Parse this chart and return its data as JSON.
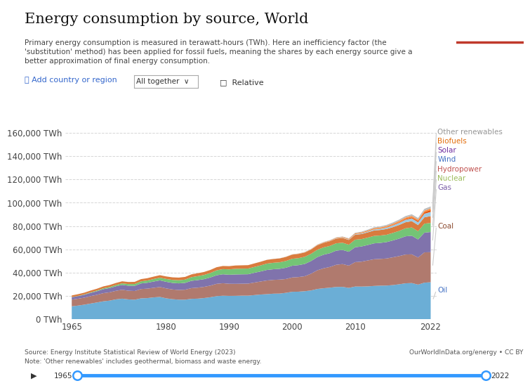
{
  "title": "Energy consumption by source, World",
  "subtitle_lines": [
    "Primary energy consumption is measured in terawatt-hours (TWh). Here an inefficiency factor (the",
    "'substitution' method) has been applied for fossil fuels, meaning the shares by each energy source give a",
    "better approximation of final energy consumption."
  ],
  "source_line1": "Source: Energy Institute Statistical Review of World Energy (2023)",
  "source_line2": "Note: 'Other renewables' includes geothermal, biomass and waste energy.",
  "source_right": "OurWorldInData.org/energy • CC BY",
  "years": [
    1965,
    1966,
    1967,
    1968,
    1969,
    1970,
    1971,
    1972,
    1973,
    1974,
    1975,
    1976,
    1977,
    1978,
    1979,
    1980,
    1981,
    1982,
    1983,
    1984,
    1985,
    1986,
    1987,
    1988,
    1989,
    1990,
    1991,
    1992,
    1993,
    1994,
    1995,
    1996,
    1997,
    1998,
    1999,
    2000,
    2001,
    2002,
    2003,
    2004,
    2005,
    2006,
    2007,
    2008,
    2009,
    2010,
    2011,
    2012,
    2013,
    2014,
    2015,
    2016,
    2017,
    2018,
    2019,
    2020,
    2021,
    2022
  ],
  "series": {
    "Oil": [
      11104,
      11722,
      12525,
      13475,
      14398,
      15376,
      15974,
      17040,
      17688,
      17042,
      16772,
      17946,
      18161,
      18761,
      19154,
      17967,
      17227,
      16830,
      16799,
      17536,
      17679,
      18189,
      18868,
      19838,
      20175,
      20048,
      20089,
      20236,
      20240,
      20740,
      21218,
      21526,
      21939,
      22033,
      22670,
      23574,
      23668,
      24072,
      24715,
      25988,
      26612,
      27096,
      27709,
      27778,
      26904,
      28071,
      28048,
      28208,
      28583,
      28839,
      28910,
      29338,
      30015,
      30845,
      31068,
      29725,
      31393,
      31756
    ],
    "Coal": [
      5752,
      5894,
      6017,
      6387,
      6557,
      6996,
      7132,
      7342,
      7621,
      7419,
      7453,
      7985,
      8097,
      8223,
      8547,
      8499,
      8332,
      8290,
      8571,
      9162,
      9444,
      9606,
      9985,
      10555,
      10757,
      10393,
      10313,
      10257,
      10329,
      10756,
      11189,
      11740,
      11842,
      12000,
      11861,
      12285,
      12542,
      12850,
      14378,
      16028,
      17124,
      17787,
      19038,
      19561,
      19119,
      20931,
      21371,
      22248,
      22912,
      22952,
      23244,
      23812,
      24209,
      24697,
      24638,
      23272,
      25988,
      25788
    ],
    "Gas": [
      2018,
      2233,
      2463,
      2768,
      3072,
      3416,
      3655,
      3902,
      4196,
      4326,
      4452,
      4795,
      5049,
      5371,
      5670,
      5669,
      5633,
      5681,
      5841,
      6289,
      6472,
      6621,
      6993,
      7344,
      7683,
      7752,
      8051,
      8064,
      8059,
      8390,
      8633,
      9062,
      9135,
      9256,
      9667,
      10056,
      10236,
      10516,
      10864,
      11330,
      11638,
      11821,
      12150,
      12128,
      11911,
      12790,
      13056,
      13266,
      13638,
      13741,
      14069,
      14484,
      15001,
      15627,
      15972,
      15520,
      16936,
      17346
    ],
    "Nuclear": [
      155,
      210,
      326,
      455,
      598,
      742,
      896,
      1080,
      1289,
      1393,
      1565,
      1785,
      1944,
      2139,
      2281,
      2453,
      2562,
      2663,
      2818,
      3101,
      3390,
      3576,
      3801,
      4213,
      4404,
      4613,
      4846,
      4850,
      4879,
      4988,
      5190,
      5447,
      5538,
      5570,
      5779,
      5969,
      6006,
      6166,
      6194,
      6290,
      6288,
      6266,
      6285,
      6207,
      6032,
      6481,
      6290,
      6335,
      6380,
      6341,
      6289,
      6477,
      6597,
      6878,
      7116,
      6986,
      7706,
      7792
    ],
    "Hydropower": [
      1397,
      1465,
      1489,
      1555,
      1575,
      1643,
      1693,
      1742,
      1779,
      1798,
      1860,
      1936,
      1984,
      2098,
      2168,
      2159,
      2213,
      2278,
      2308,
      2415,
      2511,
      2571,
      2660,
      2707,
      2701,
      2766,
      2839,
      2879,
      2914,
      3034,
      3132,
      3213,
      3265,
      3357,
      3464,
      3543,
      3626,
      3665,
      3644,
      3841,
      3887,
      4026,
      4027,
      4059,
      4100,
      4267,
      4340,
      4492,
      4667,
      4745,
      4928,
      4947,
      5106,
      5209,
      5378,
      5298,
      5471,
      5831
    ],
    "Wind": [
      0,
      0,
      0,
      0,
      0,
      0,
      0,
      0,
      0,
      0,
      0,
      0,
      0,
      0,
      0,
      0,
      0,
      0,
      0,
      0,
      0,
      0,
      0,
      0,
      0,
      0,
      0,
      0,
      0,
      0,
      4,
      6,
      8,
      12,
      22,
      32,
      40,
      53,
      67,
      87,
      118,
      157,
      212,
      285,
      341,
      444,
      570,
      707,
      893,
      1052,
      1248,
      1465,
      1779,
      2108,
      2400,
      2501,
      3030,
      3562
    ],
    "Solar": [
      0,
      0,
      0,
      0,
      0,
      0,
      0,
      0,
      0,
      0,
      0,
      0,
      0,
      0,
      0,
      0,
      0,
      0,
      0,
      0,
      0,
      0,
      0,
      0,
      0,
      0,
      0,
      0,
      0,
      0,
      0,
      0,
      0,
      0,
      0,
      0,
      1,
      1,
      2,
      3,
      4,
      5,
      7,
      10,
      16,
      27,
      50,
      77,
      125,
      187,
      282,
      389,
      529,
      704,
      902,
      1015,
      1381,
      1749
    ],
    "Biofuels": [
      0,
      0,
      0,
      0,
      0,
      0,
      0,
      0,
      0,
      0,
      0,
      0,
      0,
      0,
      0,
      0,
      0,
      0,
      0,
      0,
      0,
      0,
      0,
      0,
      0,
      0,
      0,
      0,
      0,
      0,
      0,
      0,
      0,
      0,
      115,
      145,
      175,
      205,
      245,
      295,
      355,
      405,
      490,
      580,
      619,
      716,
      782,
      836,
      910,
      943,
      997,
      1048,
      1112,
      1175,
      1211,
      1152,
      1230,
      1298
    ],
    "Other renewables": [
      0,
      0,
      0,
      0,
      0,
      0,
      0,
      0,
      0,
      0,
      0,
      0,
      0,
      0,
      0,
      0,
      0,
      0,
      0,
      0,
      0,
      0,
      0,
      0,
      0,
      0,
      0,
      0,
      0,
      0,
      34,
      45,
      56,
      67,
      110,
      142,
      175,
      208,
      241,
      274,
      307,
      340,
      380,
      420,
      460,
      530,
      620,
      720,
      830,
      920,
      1010,
      1100,
      1200,
      1310,
      1400,
      1420,
      1590,
      1700
    ]
  },
  "colors": {
    "Oil": "#6baed6",
    "Coal": "#b07a6e",
    "Gas": "#8073ac",
    "Nuclear": "#74c476",
    "Hydropower": "#d97b3e",
    "Wind": "#9ecae1",
    "Solar": "#e6550d",
    "Biofuels": "#fd8d3c",
    "Other renewables": "#bdbdbd"
  },
  "label_colors": {
    "Other renewables": "#969696",
    "Biofuels": "#e36c09",
    "Solar": "#7030a0",
    "Wind": "#4472c4",
    "Hydropower": "#c0504d",
    "Nuclear": "#9bbb59",
    "Gas": "#7b5ea7",
    "Coal": "#8c4a2f",
    "Oil": "#4472c4"
  },
  "stack_order": [
    "Oil",
    "Coal",
    "Gas",
    "Nuclear",
    "Hydropower",
    "Wind",
    "Solar",
    "Biofuels",
    "Other renewables"
  ],
  "top_group": [
    "Other renewables",
    "Biofuels",
    "Solar",
    "Wind",
    "Hydropower",
    "Nuclear",
    "Gas"
  ],
  "separate_labels": [
    "Coal",
    "Oil"
  ],
  "label_y_positions": {
    "Other renewables": 161000,
    "Biofuels": 153000,
    "Solar": 145000,
    "Wind": 137000,
    "Hydropower": 129000,
    "Nuclear": 121000,
    "Gas": 113000,
    "Coal": 80000,
    "Oil": 25000
  },
  "ylim": [
    0,
    170000
  ],
  "yticks": [
    0,
    20000,
    40000,
    60000,
    80000,
    100000,
    120000,
    140000,
    160000
  ],
  "xticks": [
    1965,
    1980,
    1990,
    2000,
    2010,
    2022
  ],
  "xlim": [
    1964,
    2023
  ],
  "background_color": "#ffffff",
  "title_fontsize": 15,
  "subtitle_fontsize": 7.5,
  "tick_fontsize": 8.5,
  "label_fontsize": 7.5,
  "footer_fontsize": 6.5,
  "logo_bg": "#002147",
  "logo_red": "#c0392b",
  "slider_color": "#3399ff",
  "add_country_text": "➕ Add country or region",
  "all_together_text": "All together  ∨",
  "relative_text": "□  Relative",
  "play_symbol": "▶",
  "slider_left_year": "1965",
  "slider_right_year": "2022"
}
